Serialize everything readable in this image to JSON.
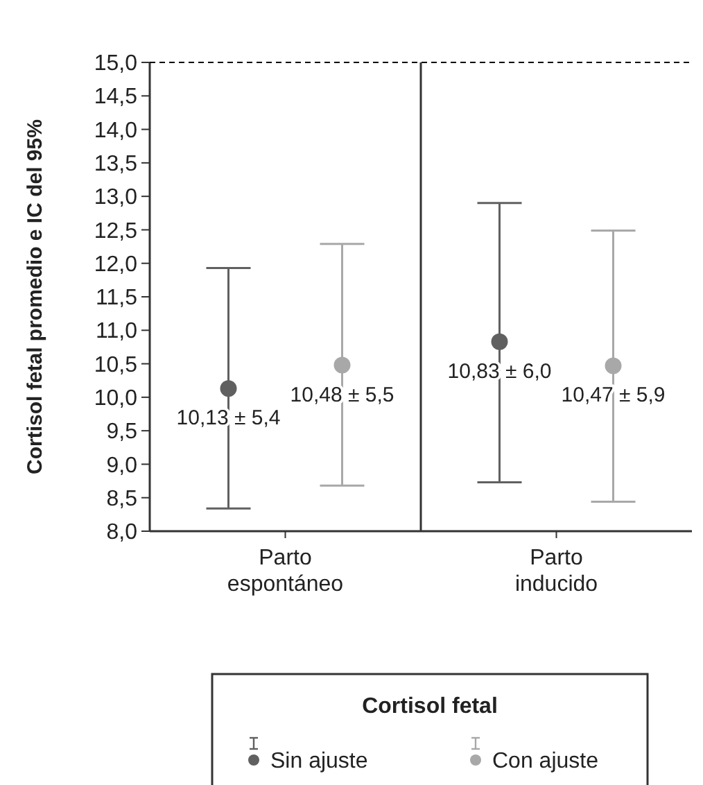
{
  "chart_data": {
    "type": "scatter",
    "ylabel": "Cortisol fetal promedio e IC del 95%",
    "legend_title": "Cortisol fetal",
    "categories": [
      "Parto\nespontáneo",
      "Parto\ninducido"
    ],
    "series": [
      {
        "name": "Sin ajuste",
        "color": "#606060",
        "values": [
          10.13,
          10.83
        ],
        "errors": [
          [
            8.34,
            11.93
          ],
          [
            8.73,
            12.9
          ]
        ],
        "value_labels": [
          "10,13 ± 5,4",
          "10,83 ± 6,0"
        ]
      },
      {
        "name": "Con ajuste",
        "color": "#a8a8a8",
        "values": [
          10.48,
          10.47
        ],
        "errors": [
          [
            8.68,
            12.29
          ],
          [
            8.44,
            12.49
          ]
        ],
        "value_labels": [
          "10,48 ± 5,5",
          "10,47 ± 5,9"
        ]
      }
    ],
    "ylim": [
      8,
      15
    ],
    "yticks": [
      {
        "value": 8,
        "label": "8,0"
      },
      {
        "value": 8.5,
        "label": "8,5"
      },
      {
        "value": 9,
        "label": "9,0"
      },
      {
        "value": 9.5,
        "label": "9,5"
      },
      {
        "value": 10,
        "label": "10,0"
      },
      {
        "value": 10.5,
        "label": "10,5"
      },
      {
        "value": 11,
        "label": "11,0"
      },
      {
        "value": 11.5,
        "label": "11,5"
      },
      {
        "value": 12,
        "label": "12,0"
      },
      {
        "value": 12.5,
        "label": "12,5"
      },
      {
        "value": 13,
        "label": "13,0"
      },
      {
        "value": 13.5,
        "label": "13,5"
      },
      {
        "value": 14,
        "label": "14,0"
      },
      {
        "value": 14.5,
        "label": "14,5"
      },
      {
        "value": 15,
        "label": "15,0"
      }
    ],
    "ref_lines": [
      {
        "axis": "y",
        "value": 15,
        "line_style": "dashed",
        "color": "#000000"
      }
    ],
    "marker": "circle",
    "grid": false,
    "legend": "bottom"
  }
}
